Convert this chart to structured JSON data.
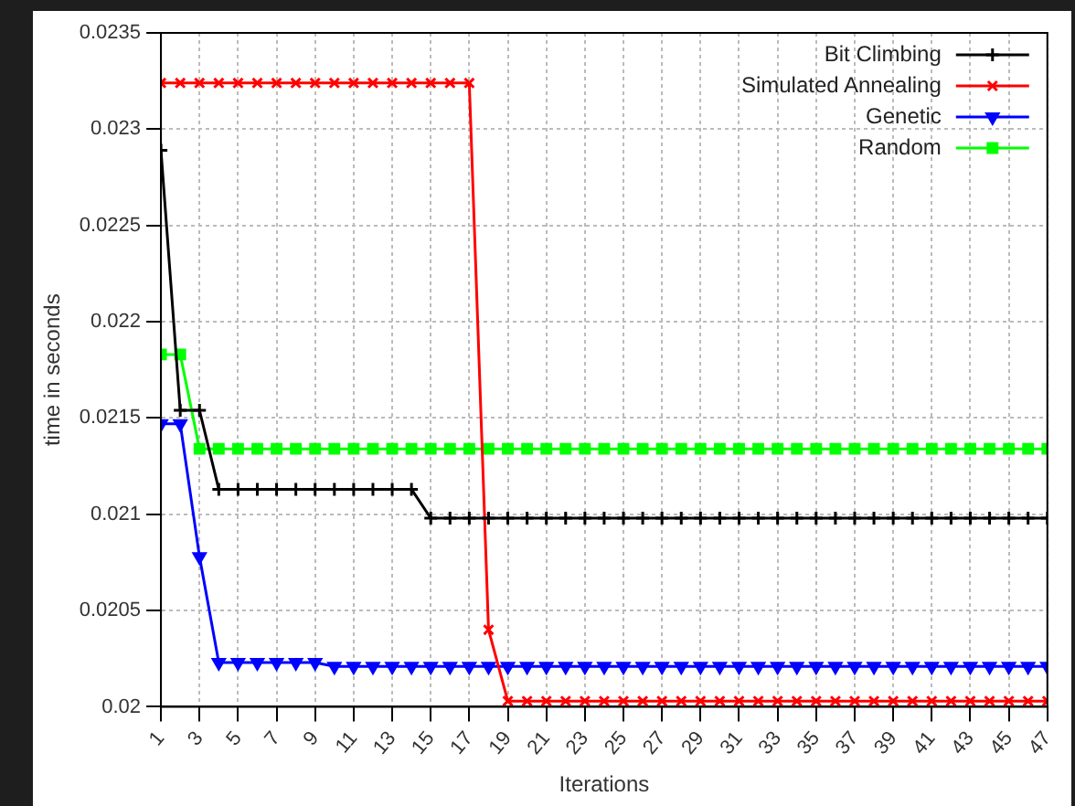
{
  "chart_data": {
    "type": "line",
    "xlabel": "Iterations",
    "ylabel": "time in seconds",
    "x": [
      1,
      2,
      3,
      4,
      5,
      6,
      7,
      8,
      9,
      10,
      11,
      12,
      13,
      14,
      15,
      16,
      17,
      18,
      19,
      20,
      21,
      22,
      23,
      24,
      25,
      26,
      27,
      28,
      29,
      30,
      31,
      32,
      33,
      34,
      35,
      36,
      37,
      38,
      39,
      40,
      41,
      42,
      43,
      44,
      45,
      46,
      47
    ],
    "xlim": [
      1,
      47
    ],
    "xticks": [
      1,
      3,
      5,
      7,
      9,
      11,
      13,
      15,
      17,
      19,
      21,
      23,
      25,
      27,
      29,
      31,
      33,
      35,
      37,
      39,
      41,
      43,
      45,
      47
    ],
    "ylim": [
      0.02,
      0.0235
    ],
    "yticks": [
      0.02,
      0.0205,
      0.021,
      0.0215,
      0.022,
      0.0225,
      0.023,
      0.0235
    ],
    "grid": true,
    "legend": "top right",
    "line_style": "solid",
    "series": [
      {
        "name": "Bit Climbing",
        "color": "#000000",
        "marker": "cross",
        "values": [
          0.02289,
          0.02154,
          0.02154,
          0.02113,
          0.02113,
          0.02113,
          0.02113,
          0.02113,
          0.02113,
          0.02113,
          0.02113,
          0.02113,
          0.02113,
          0.02113,
          0.02098,
          0.02098,
          0.02098,
          0.02098,
          0.02098,
          0.02098,
          0.02098,
          0.02098,
          0.02098,
          0.02098,
          0.02098,
          0.02098,
          0.02098,
          0.02098,
          0.02098,
          0.02098,
          0.02098,
          0.02098,
          0.02098,
          0.02098,
          0.02098,
          0.02098,
          0.02098,
          0.02098,
          0.02098,
          0.02098,
          0.02098,
          0.02098,
          0.02098,
          0.02098,
          0.02098,
          0.02098,
          0.02098
        ]
      },
      {
        "name": "Simulated Annealing",
        "color": "#ff0000",
        "marker": "x",
        "values": [
          0.02324,
          0.02324,
          0.02324,
          0.02324,
          0.02324,
          0.02324,
          0.02324,
          0.02324,
          0.02324,
          0.02324,
          0.02324,
          0.02324,
          0.02324,
          0.02324,
          0.02324,
          0.02324,
          0.02324,
          0.0204,
          0.02003,
          0.02003,
          0.02003,
          0.02003,
          0.02003,
          0.02003,
          0.02003,
          0.02003,
          0.02003,
          0.02003,
          0.02003,
          0.02003,
          0.02003,
          0.02003,
          0.02003,
          0.02003,
          0.02003,
          0.02003,
          0.02003,
          0.02003,
          0.02003,
          0.02003,
          0.02003,
          0.02003,
          0.02003,
          0.02003,
          0.02003,
          0.02003,
          0.02003
        ]
      },
      {
        "name": "Genetic",
        "color": "#0000ff",
        "marker": "triangle-down",
        "values": [
          0.02147,
          0.02147,
          0.02078,
          0.02023,
          0.02023,
          0.02023,
          0.02023,
          0.02023,
          0.02023,
          0.02021,
          0.02021,
          0.02021,
          0.02021,
          0.02021,
          0.02021,
          0.02021,
          0.02021,
          0.02021,
          0.02021,
          0.02021,
          0.02021,
          0.02021,
          0.02021,
          0.02021,
          0.02021,
          0.02021,
          0.02021,
          0.02021,
          0.02021,
          0.02021,
          0.02021,
          0.02021,
          0.02021,
          0.02021,
          0.02021,
          0.02021,
          0.02021,
          0.02021,
          0.02021,
          0.02021,
          0.02021,
          0.02021,
          0.02021,
          0.02021,
          0.02021,
          0.02021,
          0.02021
        ]
      },
      {
        "name": "Random",
        "color": "#00ff00",
        "marker": "square",
        "values": [
          0.02183,
          0.02183,
          0.02134,
          0.02134,
          0.02134,
          0.02134,
          0.02134,
          0.02134,
          0.02134,
          0.02134,
          0.02134,
          0.02134,
          0.02134,
          0.02134,
          0.02134,
          0.02134,
          0.02134,
          0.02134,
          0.02134,
          0.02134,
          0.02134,
          0.02134,
          0.02134,
          0.02134,
          0.02134,
          0.02134,
          0.02134,
          0.02134,
          0.02134,
          0.02134,
          0.02134,
          0.02134,
          0.02134,
          0.02134,
          0.02134,
          0.02134,
          0.02134,
          0.02134,
          0.02134,
          0.02134,
          0.02134,
          0.02134,
          0.02134,
          0.02134,
          0.02134,
          0.02134,
          0.02134
        ]
      }
    ]
  }
}
